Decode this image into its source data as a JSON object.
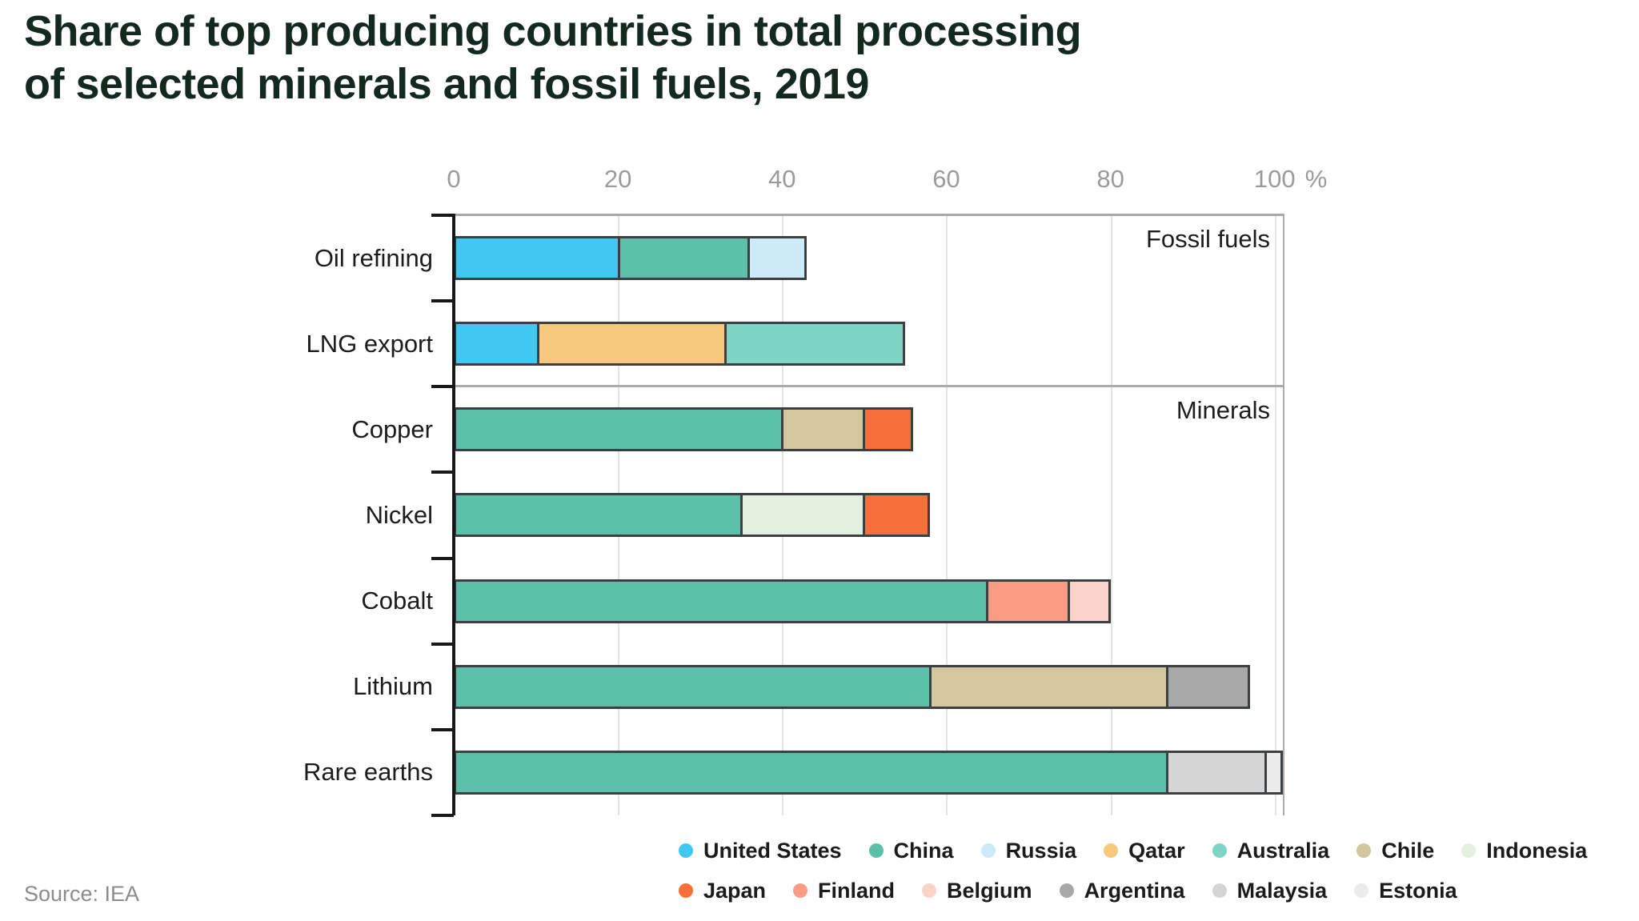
{
  "title": {
    "line1": "Share of top producing countries in total processing",
    "line2": "of selected minerals and fossil fuels, 2019"
  },
  "source": "Source: IEA",
  "colors": {
    "United States": "#3FC8F1",
    "China": "#5BC0A7",
    "Russia": "#CDEAF8",
    "Qatar": "#F8C87F",
    "Australia": "#7ED5C4",
    "Chile": "#D2C79E",
    "Indonesia": "#E4F0DF",
    "Japan": "#F76F3B",
    "Finland": "#F99C86",
    "Belgium": "#FBD3C8",
    "Argentina": "#A8A8A8",
    "Malaysia": "#D5D5D5",
    "Estonia": "#ECECEC"
  },
  "chart_data": {
    "type": "bar",
    "stacked": true,
    "orientation": "horizontal",
    "title": "Share of top producing countries in total processing of selected minerals and fossil fuels, 2019",
    "unit": "%",
    "xlim": [
      0,
      101
    ],
    "xticks": [
      0,
      20,
      40,
      60,
      80,
      100
    ],
    "grid": "vertical",
    "legend_position": "bottom-right",
    "groups": [
      {
        "label": "Fossil fuels",
        "rows": [
          {
            "category": "Oil refining",
            "segments": [
              {
                "country": "United States",
                "value": 20
              },
              {
                "country": "China",
                "value": 16
              },
              {
                "country": "Russia",
                "value": 7
              }
            ]
          },
          {
            "category": "LNG export",
            "segments": [
              {
                "country": "United States",
                "value": 10
              },
              {
                "country": "Qatar",
                "value": 23
              },
              {
                "country": "Australia",
                "value": 22
              }
            ]
          }
        ]
      },
      {
        "label": "Minerals",
        "rows": [
          {
            "category": "Copper",
            "segments": [
              {
                "country": "China",
                "value": 40
              },
              {
                "country": "Chile",
                "value": 10
              },
              {
                "country": "Japan",
                "value": 6
              }
            ]
          },
          {
            "category": "Nickel",
            "segments": [
              {
                "country": "China",
                "value": 35
              },
              {
                "country": "Indonesia",
                "value": 15
              },
              {
                "country": "Japan",
                "value": 8
              }
            ]
          },
          {
            "category": "Cobalt",
            "segments": [
              {
                "country": "China",
                "value": 65
              },
              {
                "country": "Finland",
                "value": 10
              },
              {
                "country": "Belgium",
                "value": 5
              }
            ]
          },
          {
            "category": "Lithium",
            "segments": [
              {
                "country": "China",
                "value": 58
              },
              {
                "country": "Chile",
                "value": 29
              },
              {
                "country": "Argentina",
                "value": 10
              }
            ]
          },
          {
            "category": "Rare earths",
            "segments": [
              {
                "country": "China",
                "value": 87
              },
              {
                "country": "Malaysia",
                "value": 12
              },
              {
                "country": "Estonia",
                "value": 2
              }
            ]
          }
        ]
      }
    ],
    "legend_rows": [
      [
        "United States",
        "China",
        "Russia",
        "Qatar",
        "Australia",
        "Chile",
        "Indonesia"
      ],
      [
        "Japan",
        "Finland",
        "Belgium",
        "Argentina",
        "Malaysia",
        "Estonia"
      ]
    ]
  }
}
